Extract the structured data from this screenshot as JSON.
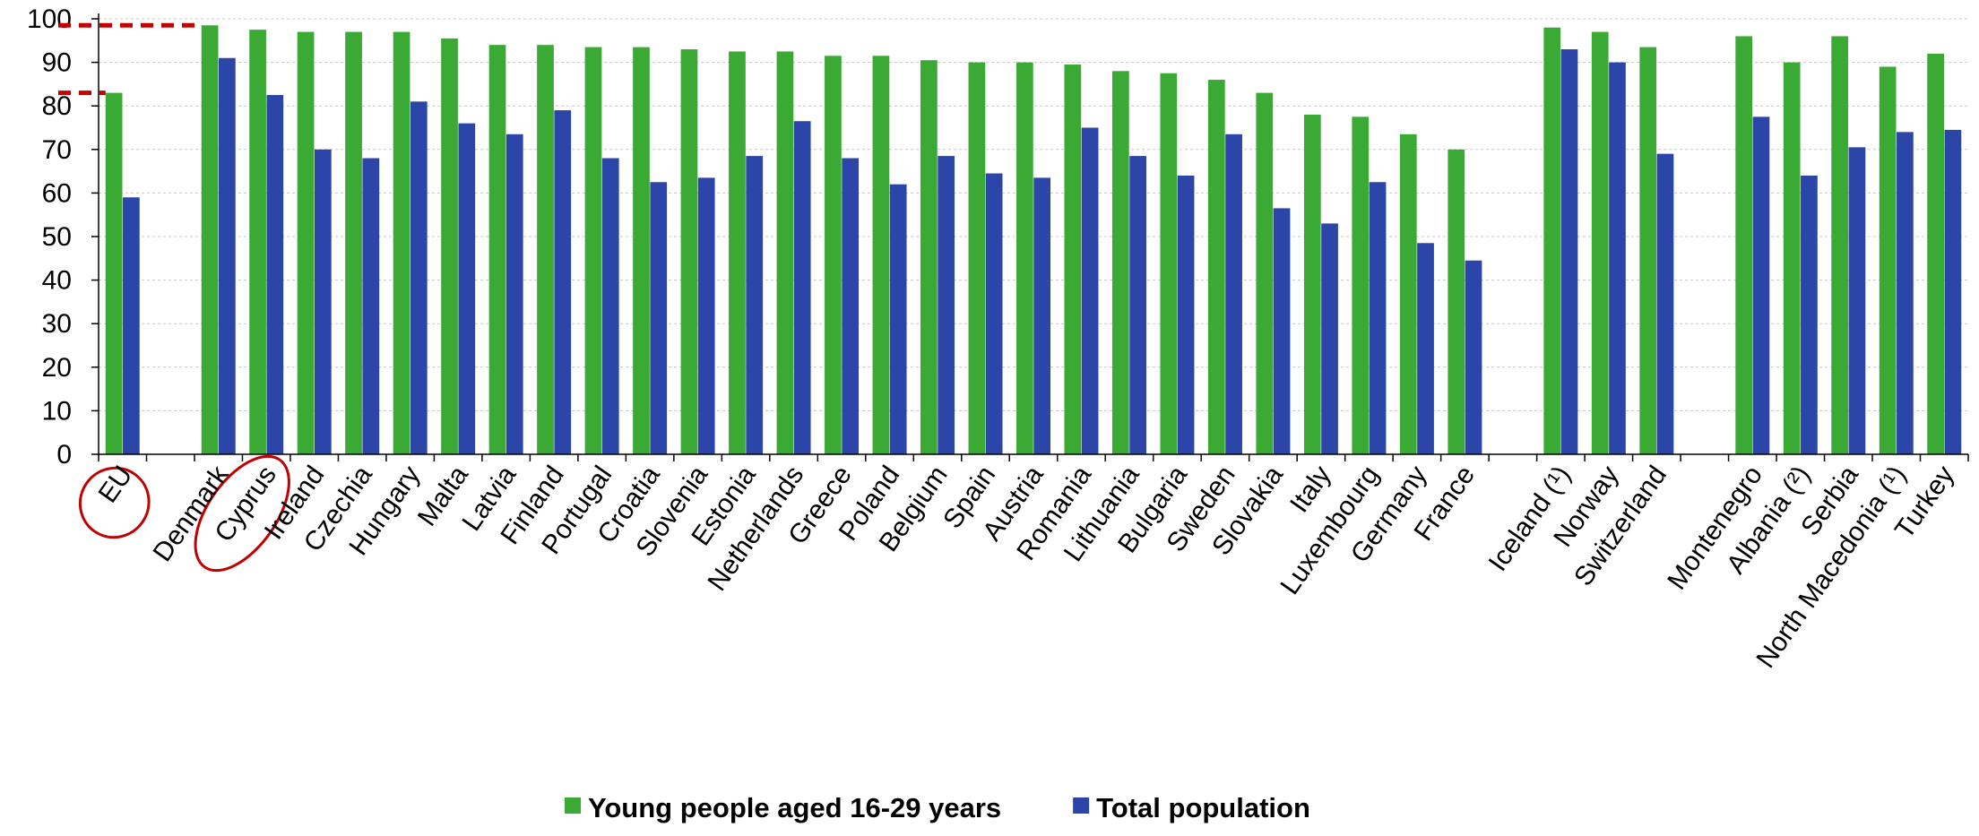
{
  "chart_data": {
    "type": "bar",
    "ylim": [
      0,
      100
    ],
    "yticks": [
      0,
      10,
      20,
      30,
      40,
      50,
      60,
      70,
      80,
      90,
      100
    ],
    "grid": true,
    "legend_position": "bottom-center",
    "categories": [
      "EU",
      "",
      "Denmark",
      "Cyprus",
      "Ireland",
      "Czechia",
      "Hungary",
      "Malta",
      "Latvia",
      "Finland",
      "Portugal",
      "Croatia",
      "Slovenia",
      "Estonia",
      "Netherlands",
      "Greece",
      "Poland",
      "Belgium",
      "Spain",
      "Austria",
      "Romania",
      "Lithuania",
      "Bulgaria",
      "Sweden",
      "Slovakia",
      "Italy",
      "Luxembourg",
      "Germany",
      "France",
      "",
      "Iceland (¹)",
      "Norway",
      "Switzerland",
      "",
      "Montenegro",
      "Albania (²)",
      "Serbia",
      "North Macedonia (¹)",
      "Turkey"
    ],
    "series": [
      {
        "name": "Young people aged 16-29 years",
        "color": "#3aaa35",
        "values": [
          83,
          null,
          98.5,
          97.5,
          97,
          97,
          97,
          95.5,
          94,
          94,
          93.5,
          93.5,
          93,
          92.5,
          92.5,
          91.5,
          91.5,
          90.5,
          90,
          90,
          89.5,
          88,
          87.5,
          86,
          83,
          78,
          77.5,
          73.5,
          70,
          null,
          98,
          97,
          93.5,
          null,
          96,
          90,
          96,
          89,
          92
        ]
      },
      {
        "name": "Total population",
        "color": "#2b45a8",
        "values": [
          59,
          null,
          91,
          82.5,
          70,
          68,
          81,
          76,
          73.5,
          79,
          68,
          62.5,
          63.5,
          68.5,
          76.5,
          68,
          62,
          68.5,
          64.5,
          63.5,
          75,
          68.5,
          64,
          73.5,
          56.5,
          53,
          62.5,
          48.5,
          44.5,
          null,
          93,
          90,
          69,
          null,
          77.5,
          64,
          70.5,
          74,
          74.5
        ]
      }
    ],
    "annotations": [
      {
        "type": "dashed-reference-line",
        "series_index": 0,
        "category": "Denmark",
        "color": "#c00000"
      },
      {
        "type": "dashed-reference-line",
        "series_index": 0,
        "category": "EU",
        "color": "#c00000"
      },
      {
        "type": "ellipse-highlight",
        "category": "EU",
        "color": "#c00000"
      },
      {
        "type": "ellipse-highlight",
        "category": "Cyprus",
        "color": "#c00000"
      }
    ]
  }
}
